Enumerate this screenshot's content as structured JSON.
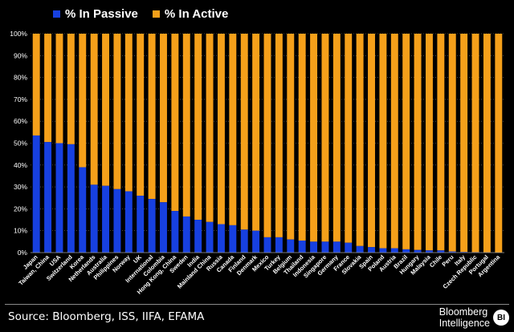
{
  "colors": {
    "passive": "#1740e0",
    "active": "#f5a01a",
    "background": "#000000",
    "grid": "#6e6e6e"
  },
  "legend": {
    "passive": "% In Passive",
    "active": "% In Active"
  },
  "chart_data": {
    "type": "bar",
    "stacked": true,
    "ylim": [
      0,
      100
    ],
    "yticks": [
      "0%",
      "10%",
      "20%",
      "30%",
      "40%",
      "50%",
      "60%",
      "70%",
      "80%",
      "90%",
      "100%"
    ],
    "grid": true,
    "legend_position": "top-left",
    "categories": [
      "Japan",
      "Taiwan, China",
      "USA",
      "Switzerland",
      "Korea",
      "Netherlands",
      "Australia",
      "Philippines",
      "Norway",
      "UK",
      "International",
      "Colombia",
      "Hong Kong, China",
      "Sweden",
      "India",
      "Mainland China",
      "Russia",
      "Canada",
      "Finland",
      "Denmark",
      "Mexico",
      "Turkey",
      "Belgium",
      "Thailand",
      "Indonesia",
      "Singapore",
      "Germany",
      "France",
      "Slovakia",
      "Spain",
      "Poland",
      "Austria",
      "Brazil",
      "Hungary",
      "Malaysia",
      "Chile",
      "Peru",
      "Italy",
      "Czech Republic",
      "Portugal",
      "Argentina"
    ],
    "series": [
      {
        "name": "% In Passive",
        "values": [
          53.5,
          50.5,
          50,
          49.5,
          39,
          31,
          30.5,
          29,
          28,
          26,
          24.5,
          23,
          19,
          16.5,
          15,
          14,
          13,
          12.5,
          10.5,
          10,
          7,
          7,
          6,
          5.5,
          5,
          5,
          5,
          4.5,
          3,
          2.5,
          2,
          2,
          1.5,
          1.2,
          1,
          1,
          0.5,
          0.3,
          0.2,
          0.1,
          0
        ]
      },
      {
        "name": "% In Active",
        "values": [
          46.5,
          49.5,
          50,
          50.5,
          61,
          69,
          69.5,
          71,
          72,
          74,
          75.5,
          77,
          81,
          83.5,
          85,
          86,
          87,
          87.5,
          89.5,
          90,
          93,
          93,
          94,
          94.5,
          95,
          95,
          95,
          95.5,
          97,
          97.5,
          98,
          98,
          98.5,
          98.8,
          99,
          99,
          99.5,
          99.7,
          99.8,
          99.9,
          100
        ]
      }
    ]
  },
  "footer": {
    "source": "Source: Bloomberg, ISS, IIFA, EFAMA",
    "brand_line1": "Bloomberg",
    "brand_line2": "Intelligence",
    "logo": "BI"
  }
}
